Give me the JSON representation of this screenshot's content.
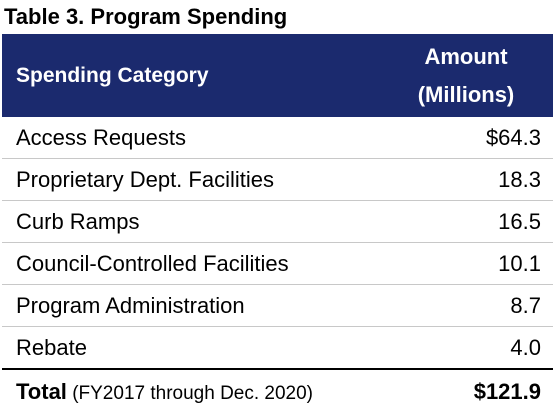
{
  "title": "Table 3. Program Spending",
  "header": {
    "category": "Spending Category",
    "amount_line1": "Amount",
    "amount_line2": "(Millions)"
  },
  "rows": [
    {
      "category": "Access Requests",
      "amount": "$64.3"
    },
    {
      "category": "Proprietary Dept. Facilities",
      "amount": "18.3"
    },
    {
      "category": "Curb Ramps",
      "amount": "16.5"
    },
    {
      "category": "Council-Controlled Facilities",
      "amount": "10.1"
    },
    {
      "category": "Program Administration",
      "amount": "8.7"
    },
    {
      "category": "Rebate",
      "amount": "4.0"
    }
  ],
  "total": {
    "label": "Total",
    "note": " (FY2017 through Dec. 2020)",
    "amount": "$121.9"
  },
  "colors": {
    "header_bg": "#1b2a6e",
    "header_text": "#ffffff",
    "row_divider": "#c8c8c8"
  }
}
